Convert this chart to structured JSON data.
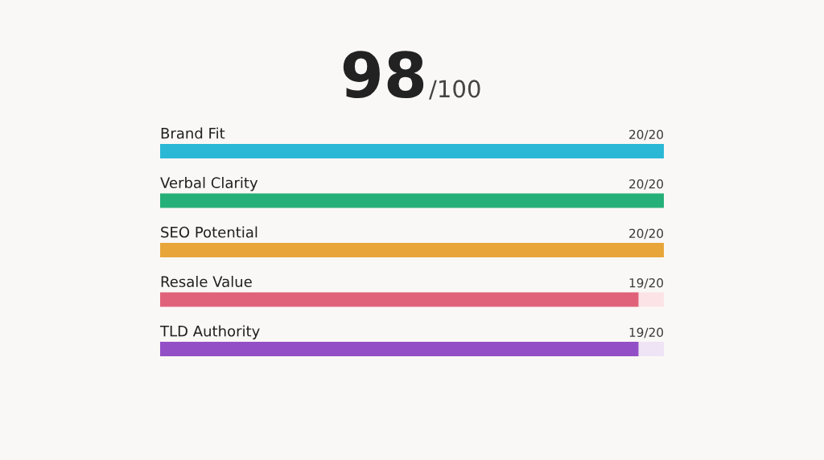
{
  "chart_data": {
    "type": "bar",
    "orientation": "horizontal",
    "stacked": true,
    "title": "98",
    "subtitle": "/100",
    "categories": [
      "Brand Fit",
      "Verbal Clarity",
      "SEO Potential",
      "Resale Value",
      "TLD Authority"
    ],
    "series": [
      {
        "values": [
          20,
          20,
          20,
          19,
          19
        ],
        "colors": [
          "#2bb8d6",
          "#25b079",
          "#e8a63a",
          "#e0627a",
          "#9350c6"
        ],
        "value_labels": [
          "20/20",
          "20/20",
          "20/20",
          "19/20",
          "19/20"
        ]
      },
      {
        "values": [
          null,
          null,
          null,
          1,
          1
        ],
        "colors": [
          null,
          null,
          null,
          "#fbe3e6",
          "#eee4f5"
        ]
      }
    ],
    "tick_labels": "y"
  }
}
